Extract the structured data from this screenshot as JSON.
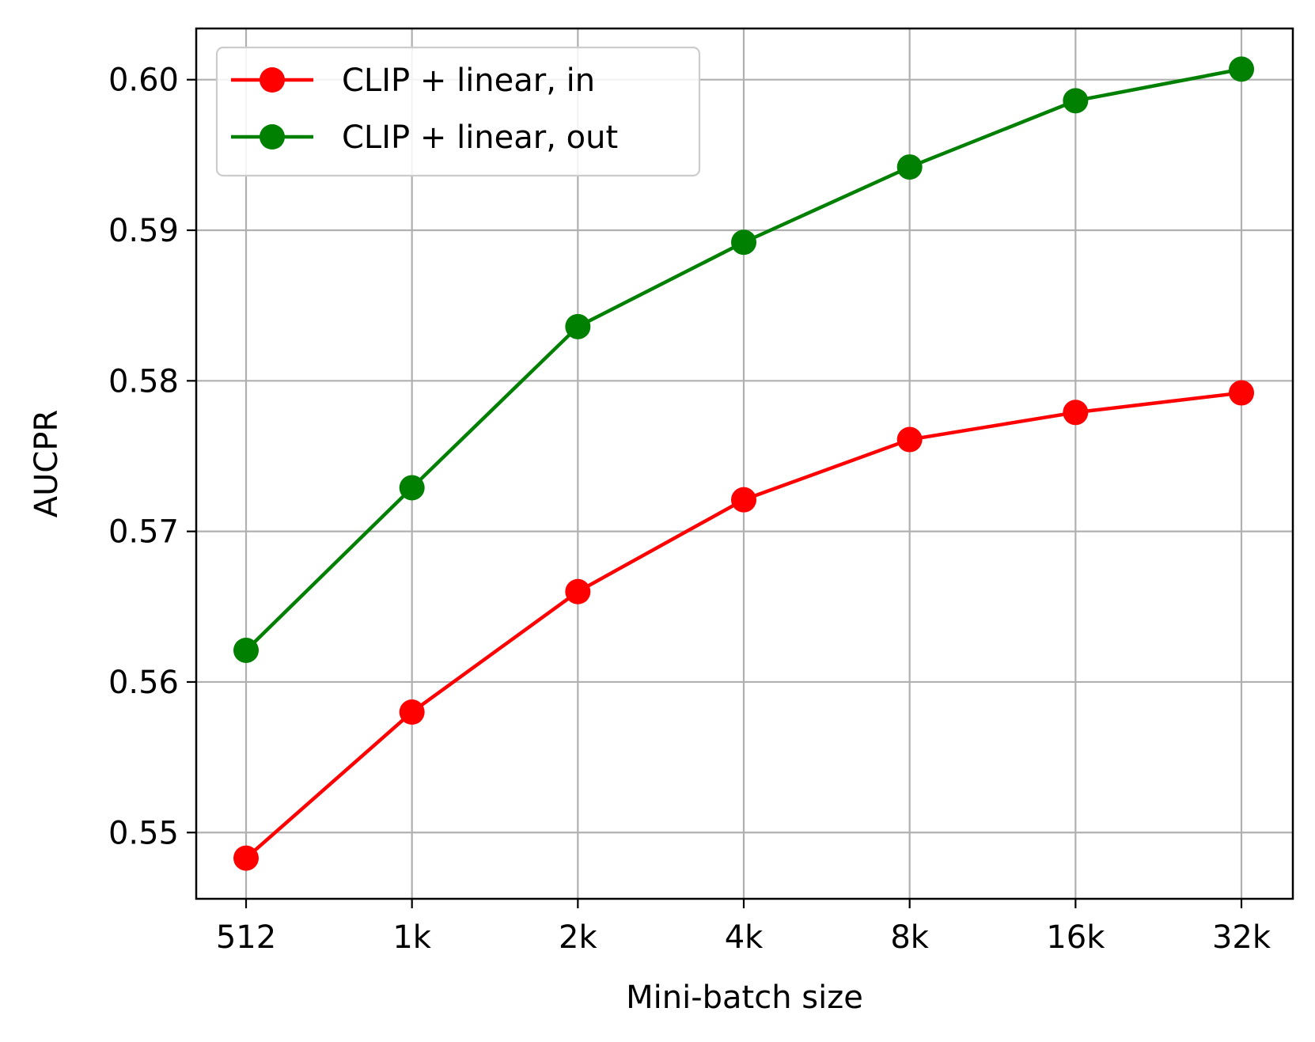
{
  "chart_data": {
    "type": "line",
    "title": "",
    "xlabel": "Mini-batch size",
    "ylabel": "AUCPR",
    "categories": [
      "512",
      "1k",
      "2k",
      "4k",
      "8k",
      "16k",
      "32k"
    ],
    "yticks": [
      "0.55",
      "0.56",
      "0.57",
      "0.58",
      "0.59",
      "0.60"
    ],
    "ylim": [
      0.5456,
      0.6034
    ],
    "grid": true,
    "legend_position": "top-left",
    "series": [
      {
        "name": "CLIP + linear, in",
        "color": "#ff0000",
        "marker": "circle",
        "values": [
          0.5483,
          0.558,
          0.566,
          0.5721,
          0.5761,
          0.5779,
          0.5792
        ]
      },
      {
        "name": "CLIP + linear, out",
        "color": "#008000",
        "marker": "circle",
        "values": [
          0.5621,
          0.5729,
          0.5836,
          0.5892,
          0.5942,
          0.5986,
          0.6007
        ]
      }
    ]
  }
}
